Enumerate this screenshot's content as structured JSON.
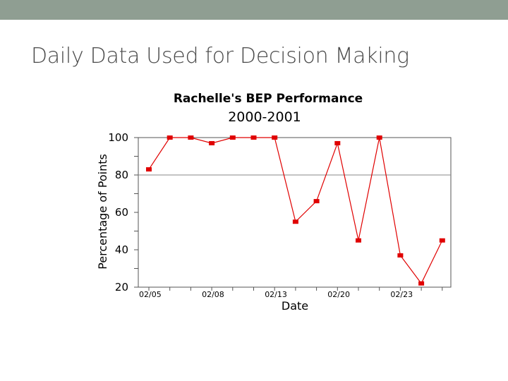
{
  "slide": {
    "title": "Daily Data Used for Decision Making",
    "title_color": "#4a4a4a",
    "top_bar_color": "#8f9e92"
  },
  "chart_data": {
    "type": "line",
    "title": "Rachelle's BEP Performance",
    "subtitle": "2000-2001",
    "xlabel": "Date",
    "ylabel": "Percentage of Points",
    "ylim": [
      20,
      100
    ],
    "yticks": [
      20,
      40,
      60,
      80,
      100
    ],
    "gridlines_y": [
      80
    ],
    "grid": false,
    "legend": "none",
    "x_tick_labels": [
      "02/05",
      "02/08",
      "02/13",
      "02/20",
      "02/23"
    ],
    "series": [
      {
        "color": "#e00000",
        "values": [
          83,
          100,
          100,
          97,
          100,
          100,
          100,
          55,
          66,
          97,
          45,
          100,
          37,
          22,
          45
        ]
      }
    ]
  }
}
